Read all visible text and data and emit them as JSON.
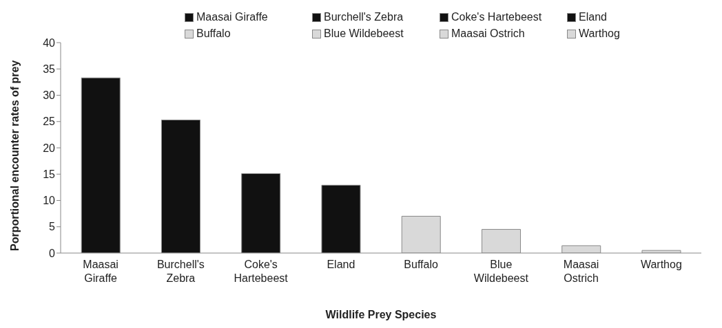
{
  "chart_data": {
    "type": "bar",
    "stacked": true,
    "xlabel": "Wildlife Prey Species",
    "ylabel": "Porportional encounter rates of prey",
    "categories": [
      "Maasai Giraffe",
      "Burchell's Zebra",
      "Coke's Hartebeest",
      "Eland",
      "Buffalo",
      "Blue Wildebeest",
      "Maasai Ostrich",
      "Warthog"
    ],
    "series": [
      {
        "name": "Maasai Giraffe",
        "color": "#111111",
        "values": [
          33.3,
          null,
          null,
          null,
          null,
          null,
          null,
          null
        ]
      },
      {
        "name": "Burchell's Zebra",
        "color": "#111111",
        "values": [
          null,
          25.3,
          null,
          null,
          null,
          null,
          null,
          null
        ]
      },
      {
        "name": "Coke's Hartebeest",
        "color": "#111111",
        "values": [
          null,
          null,
          15.1,
          null,
          null,
          null,
          null,
          null
        ]
      },
      {
        "name": "Eland",
        "color": "#111111",
        "values": [
          null,
          null,
          null,
          12.9,
          null,
          null,
          null,
          null
        ]
      },
      {
        "name": "Buffalo",
        "color": "#d9d9d9",
        "values": [
          null,
          null,
          null,
          null,
          7.0,
          null,
          null,
          null
        ]
      },
      {
        "name": "Blue Wildebeest",
        "color": "#d9d9d9",
        "values": [
          null,
          null,
          null,
          null,
          null,
          4.5,
          null,
          null
        ]
      },
      {
        "name": "Maasai Ostrich",
        "color": "#d9d9d9",
        "values": [
          null,
          null,
          null,
          null,
          null,
          null,
          1.4,
          null
        ]
      },
      {
        "name": "Warthog",
        "color": "#d9d9d9",
        "values": [
          null,
          null,
          null,
          null,
          null,
          null,
          null,
          0.5
        ]
      }
    ],
    "ylim": [
      0,
      40
    ],
    "yticks": [
      0,
      5,
      10,
      15,
      20,
      25,
      30,
      35,
      40
    ],
    "grid": false,
    "legend": "top"
  }
}
